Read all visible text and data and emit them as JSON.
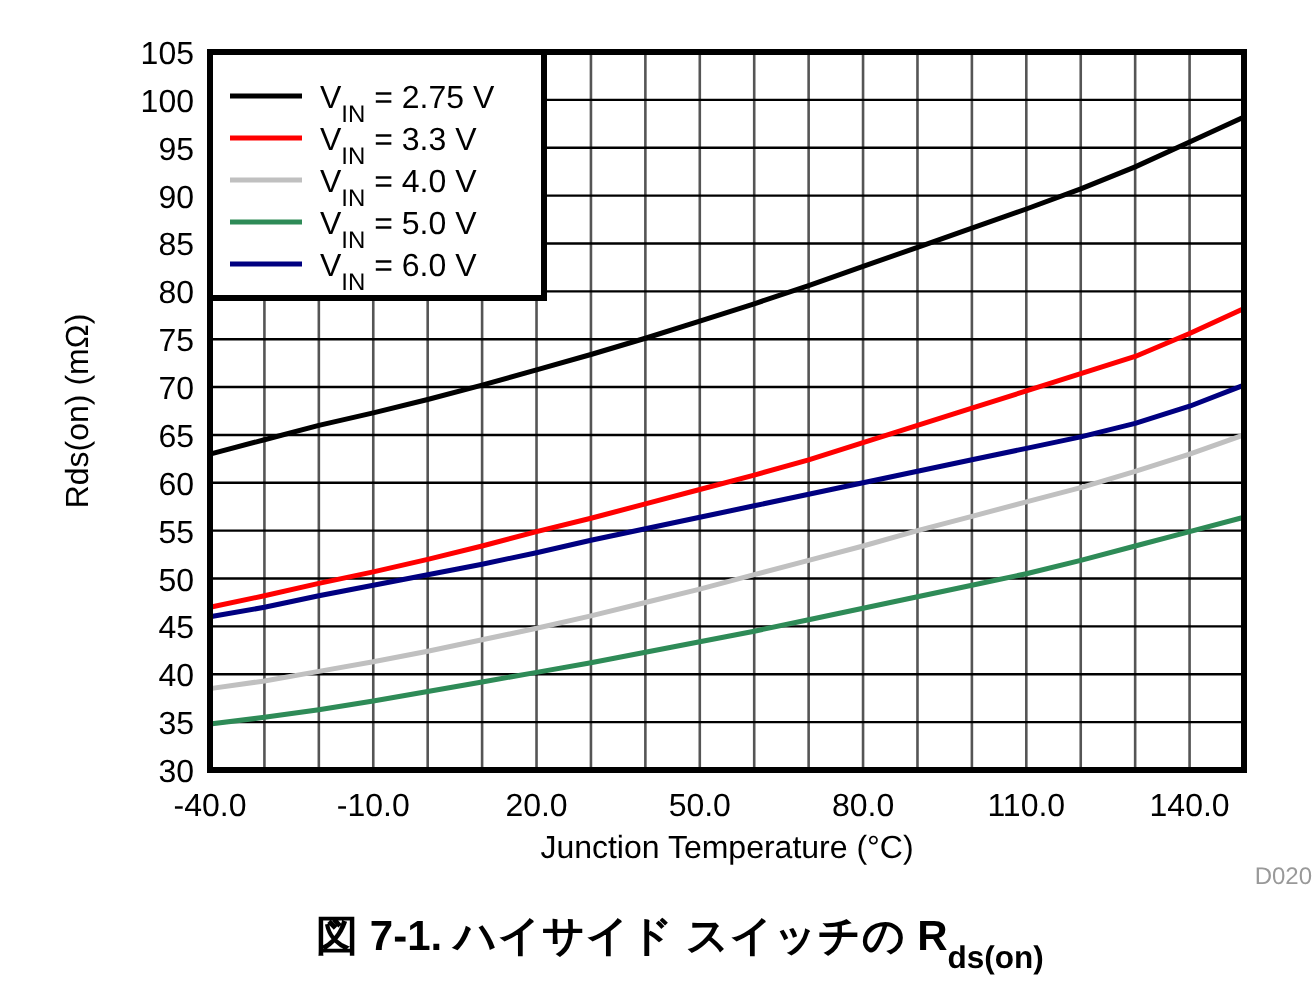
{
  "chart_data": {
    "type": "line",
    "title": "図 7-1. ハイサイド スイッチの R$_{ds(on)}$",
    "xlabel": "Junction Temperature (°C)",
    "ylabel": "Rds(on) (mΩ)",
    "annotations": [
      "D020"
    ],
    "x": [
      -40,
      -30,
      -20,
      -10,
      0,
      10,
      20,
      30,
      40,
      50,
      60,
      70,
      80,
      90,
      100,
      110,
      120,
      130,
      140,
      150
    ],
    "series": [
      {
        "name": "V$_{IN}$ = 2.75 V",
        "color": "#000000",
        "values": [
          63,
          64.5,
          66,
          67.3,
          68.7,
          70.2,
          71.8,
          73.4,
          75.1,
          76.9,
          78.7,
          80.6,
          82.6,
          84.6,
          86.6,
          88.6,
          90.7,
          93,
          95.6,
          98.2
        ]
      },
      {
        "name": "V$_{IN}$ = 3.3 V",
        "color": "#ff0000",
        "values": [
          47,
          48.2,
          49.5,
          50.7,
          52,
          53.4,
          54.9,
          56.3,
          57.8,
          59.3,
          60.8,
          62.4,
          64.2,
          66,
          67.8,
          69.6,
          71.4,
          73.2,
          75.6,
          78.2
        ]
      },
      {
        "name": "V$_{IN}$ = 4.0 V",
        "color": "#c0c0c0",
        "values": [
          38.5,
          39.3,
          40.3,
          41.3,
          42.4,
          43.6,
          44.8,
          46.1,
          47.5,
          48.9,
          50.4,
          51.9,
          53.4,
          55,
          56.5,
          58,
          59.5,
          61.2,
          63,
          65
        ]
      },
      {
        "name": "V$_{IN}$ = 5.0 V",
        "color": "#2e8b57",
        "values": [
          34.8,
          35.5,
          36.3,
          37.2,
          38.2,
          39.2,
          40.2,
          41.2,
          42.3,
          43.4,
          44.5,
          45.7,
          46.9,
          48.1,
          49.3,
          50.5,
          51.9,
          53.4,
          54.9,
          56.4
        ]
      },
      {
        "name": "V$_{IN}$ = 6.0 V",
        "color": "#000080",
        "values": [
          46,
          47,
          48.2,
          49.3,
          50.4,
          51.5,
          52.7,
          54,
          55.2,
          56.4,
          57.6,
          58.8,
          60,
          61.2,
          62.4,
          63.6,
          64.8,
          66.2,
          68,
          70.2
        ]
      }
    ],
    "xlim": [
      -40,
      150
    ],
    "xticks": [
      {
        "value": -40,
        "label": "-40.0"
      },
      {
        "value": -30,
        "label": null
      },
      {
        "value": -20,
        "label": null
      },
      {
        "value": -10,
        "label": "-10.0"
      },
      {
        "value": 0,
        "label": null
      },
      {
        "value": 10,
        "label": null
      },
      {
        "value": 20,
        "label": "20.0"
      },
      {
        "value": 30,
        "label": null
      },
      {
        "value": 40,
        "label": null
      },
      {
        "value": 50,
        "label": "50.0"
      },
      {
        "value": 60,
        "label": null
      },
      {
        "value": 70,
        "label": null
      },
      {
        "value": 80,
        "label": "80.0"
      },
      {
        "value": 90,
        "label": null
      },
      {
        "value": 100,
        "label": null
      },
      {
        "value": 110,
        "label": "110.0"
      },
      {
        "value": 120,
        "label": null
      },
      {
        "value": 130,
        "label": null
      },
      {
        "value": 140,
        "label": "140.0"
      }
    ],
    "ylim": [
      30,
      105
    ],
    "yticks": [
      30,
      35,
      40,
      45,
      50,
      55,
      60,
      65,
      70,
      75,
      80,
      85,
      90,
      95,
      100,
      105
    ],
    "grid": true,
    "legend": "top left",
    "line_style": "solid"
  }
}
